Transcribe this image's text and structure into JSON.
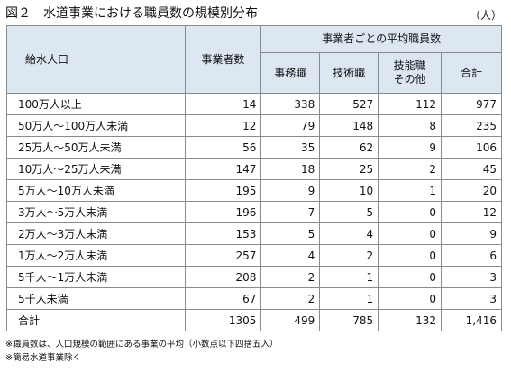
{
  "header": {
    "title": "図２　水道事業における職員数の規模別分布",
    "unit": "（人）"
  },
  "table": {
    "headers": {
      "population": "給水人口",
      "operators": "事業者数",
      "average_group": "事業者ごとの平均職員数",
      "sub": [
        "事務職",
        "技術職",
        "技能職\nその他",
        "合計"
      ]
    },
    "rows": [
      [
        "100万人以上",
        "14",
        "338",
        "527",
        "112",
        "977"
      ],
      [
        "50万人～100万人未満",
        "12",
        "79",
        "148",
        "8",
        "235"
      ],
      [
        "25万人～50万人未満",
        "56",
        "35",
        "62",
        "9",
        "106"
      ],
      [
        "10万人～25万人未満",
        "147",
        "18",
        "25",
        "2",
        "45"
      ],
      [
        "5万人～10万人未満",
        "195",
        "9",
        "10",
        "1",
        "20"
      ],
      [
        "3万人～5万人未満",
        "196",
        "7",
        "5",
        "0",
        "12"
      ],
      [
        "2万人～3万人未満",
        "153",
        "5",
        "4",
        "0",
        "9"
      ],
      [
        "1万人～2万人未満",
        "257",
        "4",
        "2",
        "0",
        "6"
      ],
      [
        "5千人～1万人未満",
        "208",
        "2",
        "1",
        "0",
        "3"
      ],
      [
        "5千人未満",
        "67",
        "2",
        "1",
        "0",
        "3"
      ],
      [
        "合計",
        "1305",
        "499",
        "785",
        "132",
        "1,416"
      ]
    ]
  },
  "notes": [
    "※職員数は、人口規模の範囲にある事業の平均（小数点以下四捨五入）",
    "※簡易水道事業除く"
  ]
}
